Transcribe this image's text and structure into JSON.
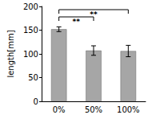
{
  "chart_data": {
    "type": "bar",
    "categories": [
      "0%",
      "50%",
      "100%"
    ],
    "values": [
      152,
      107,
      106
    ],
    "errors": [
      5,
      10,
      12
    ],
    "color": "#a6a6a6",
    "y_label": "length[mm]",
    "ylim": [
      0,
      200
    ],
    "yticks": [
      0,
      50,
      100,
      150,
      200
    ],
    "grid": false,
    "annotations": [
      {
        "text": "**",
        "from": "0%",
        "to": "50%"
      },
      {
        "text": "**",
        "from": "0%",
        "to": "100%"
      }
    ]
  }
}
